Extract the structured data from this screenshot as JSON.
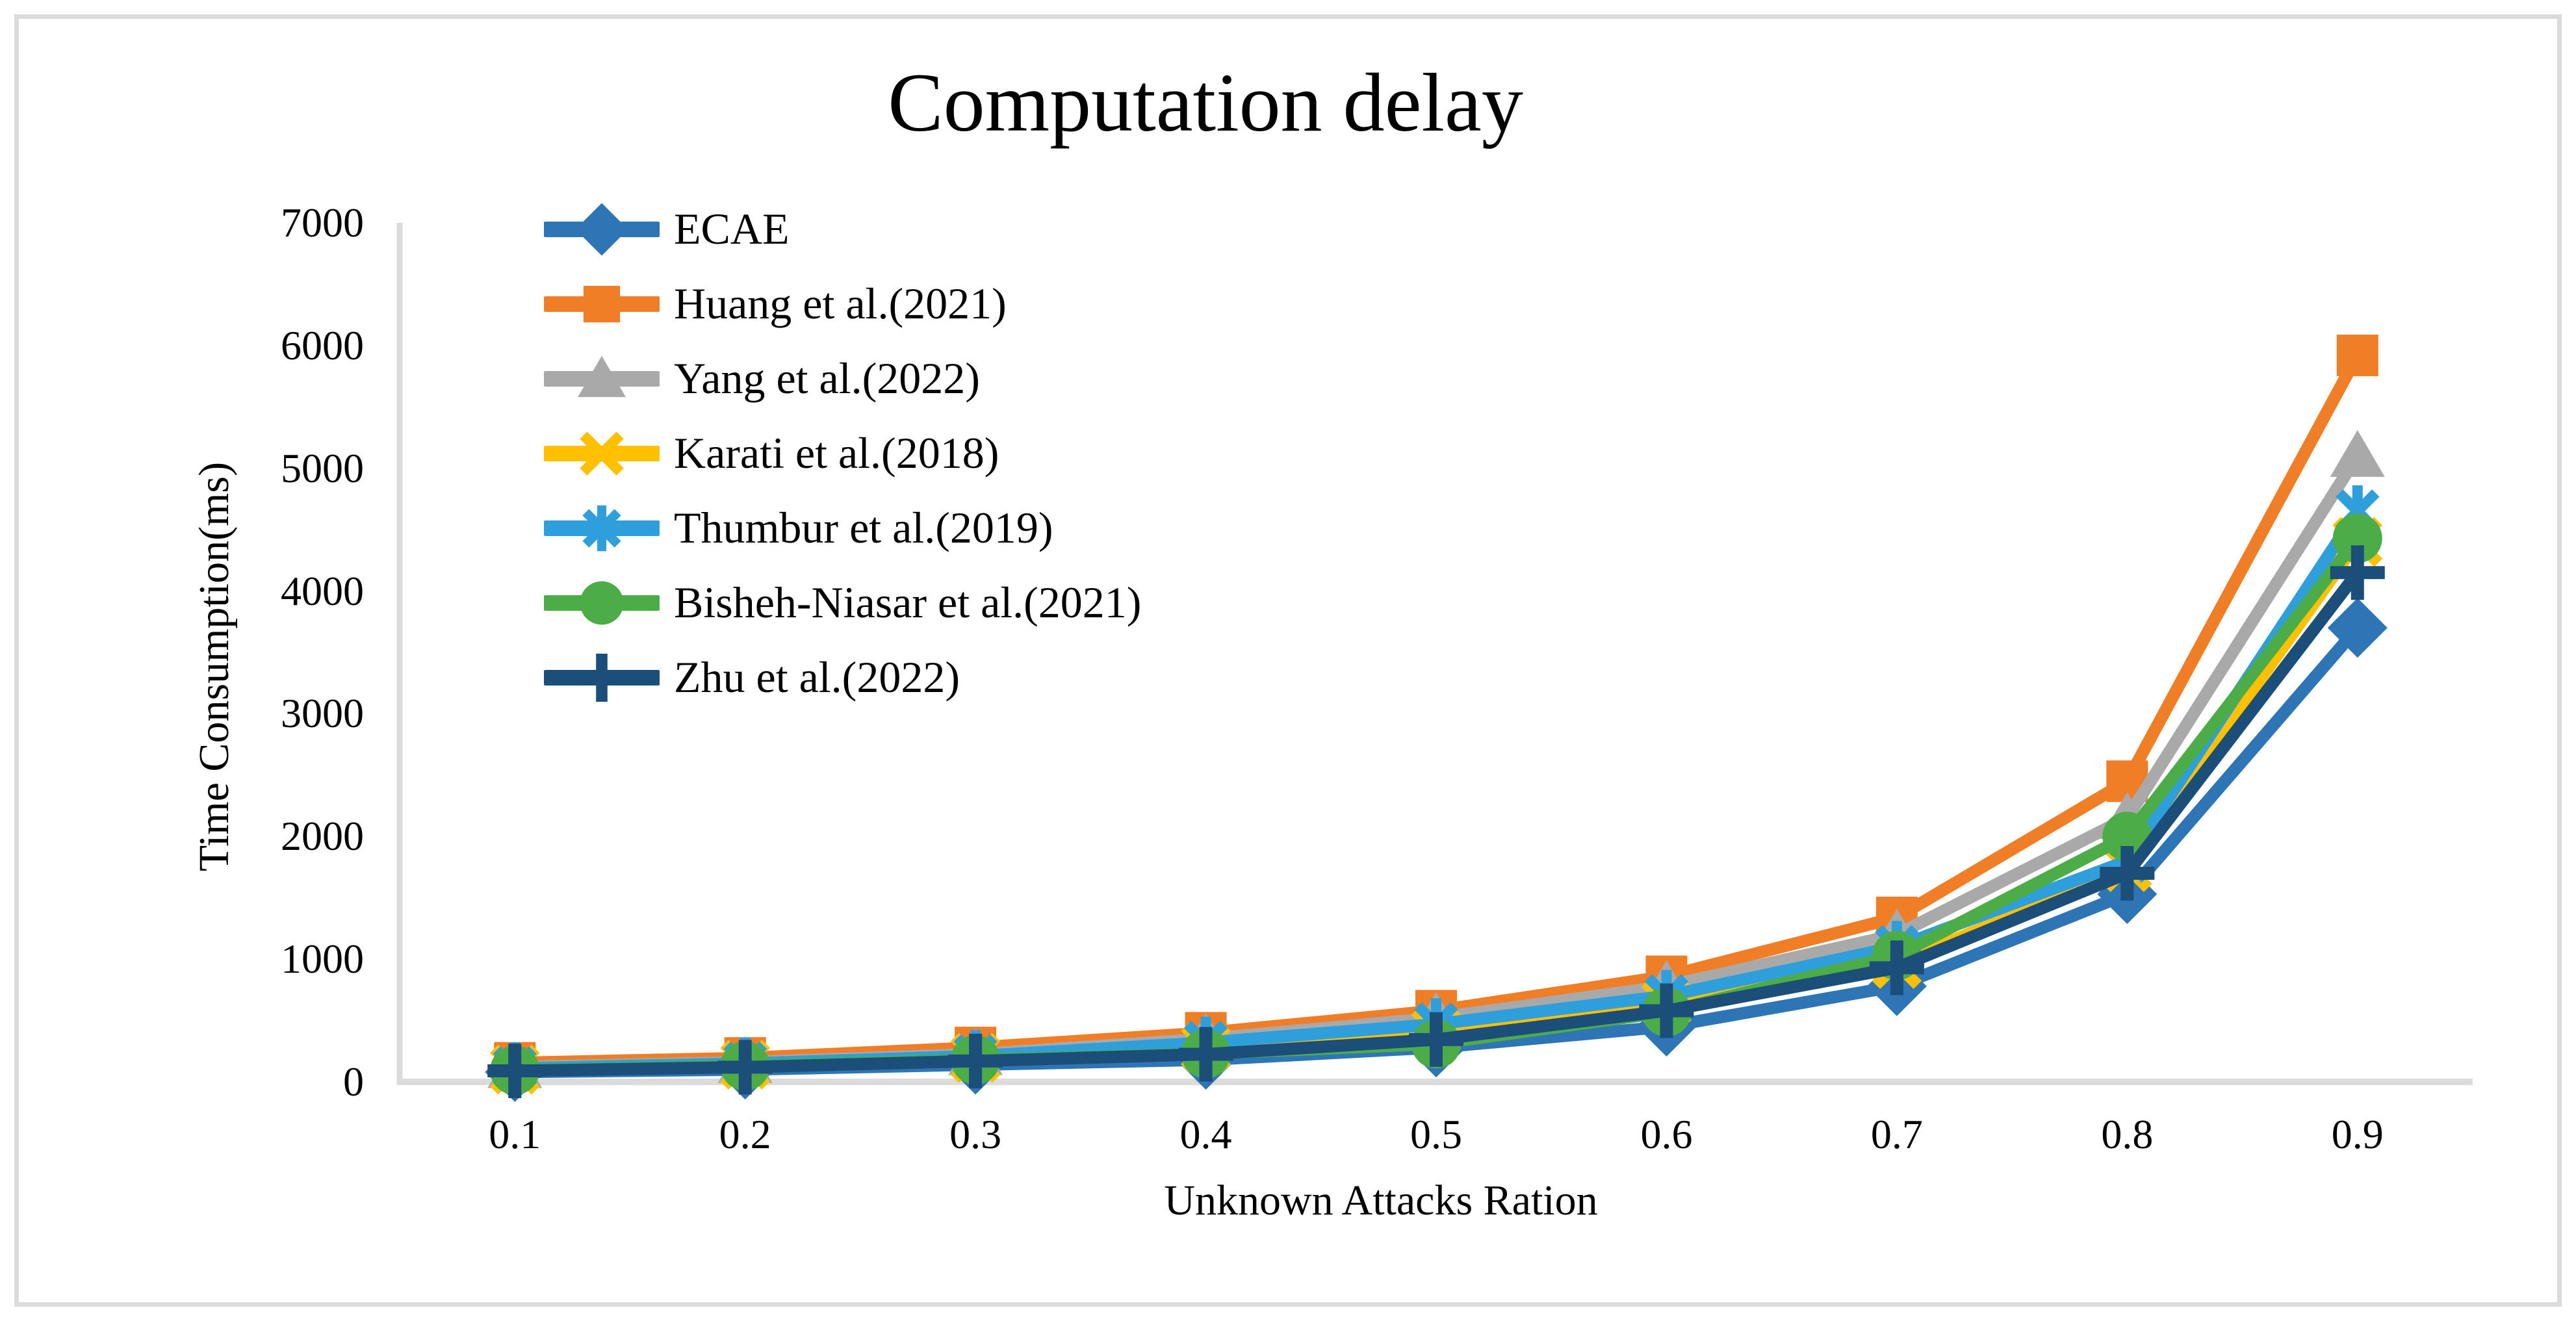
{
  "chart_data": {
    "type": "line",
    "title": "Computation delay",
    "xlabel": "Unknown Attacks Ration",
    "ylabel": "Time Consumption(ms)",
    "categories": [
      "0.1",
      "0.2",
      "0.3",
      "0.4",
      "0.5",
      "0.6",
      "0.7",
      "0.8",
      "0.9"
    ],
    "ylim": [
      0,
      7000
    ],
    "ytick_step": 1000,
    "ytick_labels": [
      "0",
      "1000",
      "2000",
      "3000",
      "4000",
      "5000",
      "6000",
      "7000"
    ],
    "grid": false,
    "legend_position": "inside-top-left",
    "axis_color": "#DBDBDB",
    "plot_background": "#FFFFFF",
    "series": [
      {
        "name": "ECAE",
        "color": "#2E75B6",
        "marker": "diamond",
        "values": [
          80,
          100,
          140,
          180,
          280,
          450,
          780,
          1530,
          3700
        ]
      },
      {
        "name": "Huang et al.(2021)",
        "color": "#F07E27",
        "marker": "square",
        "values": [
          155,
          195,
          280,
          400,
          580,
          860,
          1340,
          2450,
          5920
        ]
      },
      {
        "name": "Yang et al.(2022)",
        "color": "#A9A9A9",
        "marker": "triangle",
        "values": [
          120,
          160,
          225,
          350,
          520,
          780,
          1200,
          2150,
          5100
        ]
      },
      {
        "name": "Karati et al.(2018)",
        "color": "#FFC000",
        "marker": "x",
        "values": [
          100,
          140,
          195,
          280,
          410,
          640,
          960,
          1750,
          4400
        ]
      },
      {
        "name": "Thumbur et al.(2019)",
        "color": "#2E9FDA",
        "marker": "asterisk",
        "values": [
          110,
          150,
          210,
          320,
          470,
          700,
          1100,
          1800,
          4650
        ]
      },
      {
        "name": "Bisheh-Niasar et al.(2021)",
        "color": "#4CAC48",
        "marker": "circle",
        "values": [
          95,
          130,
          180,
          230,
          310,
          570,
          1030,
          2000,
          4430
        ]
      },
      {
        "name": "Zhu et al.(2022)",
        "color": "#1B4E79",
        "marker": "plus",
        "values": [
          90,
          120,
          170,
          225,
          345,
          580,
          930,
          1700,
          4150
        ]
      }
    ]
  }
}
